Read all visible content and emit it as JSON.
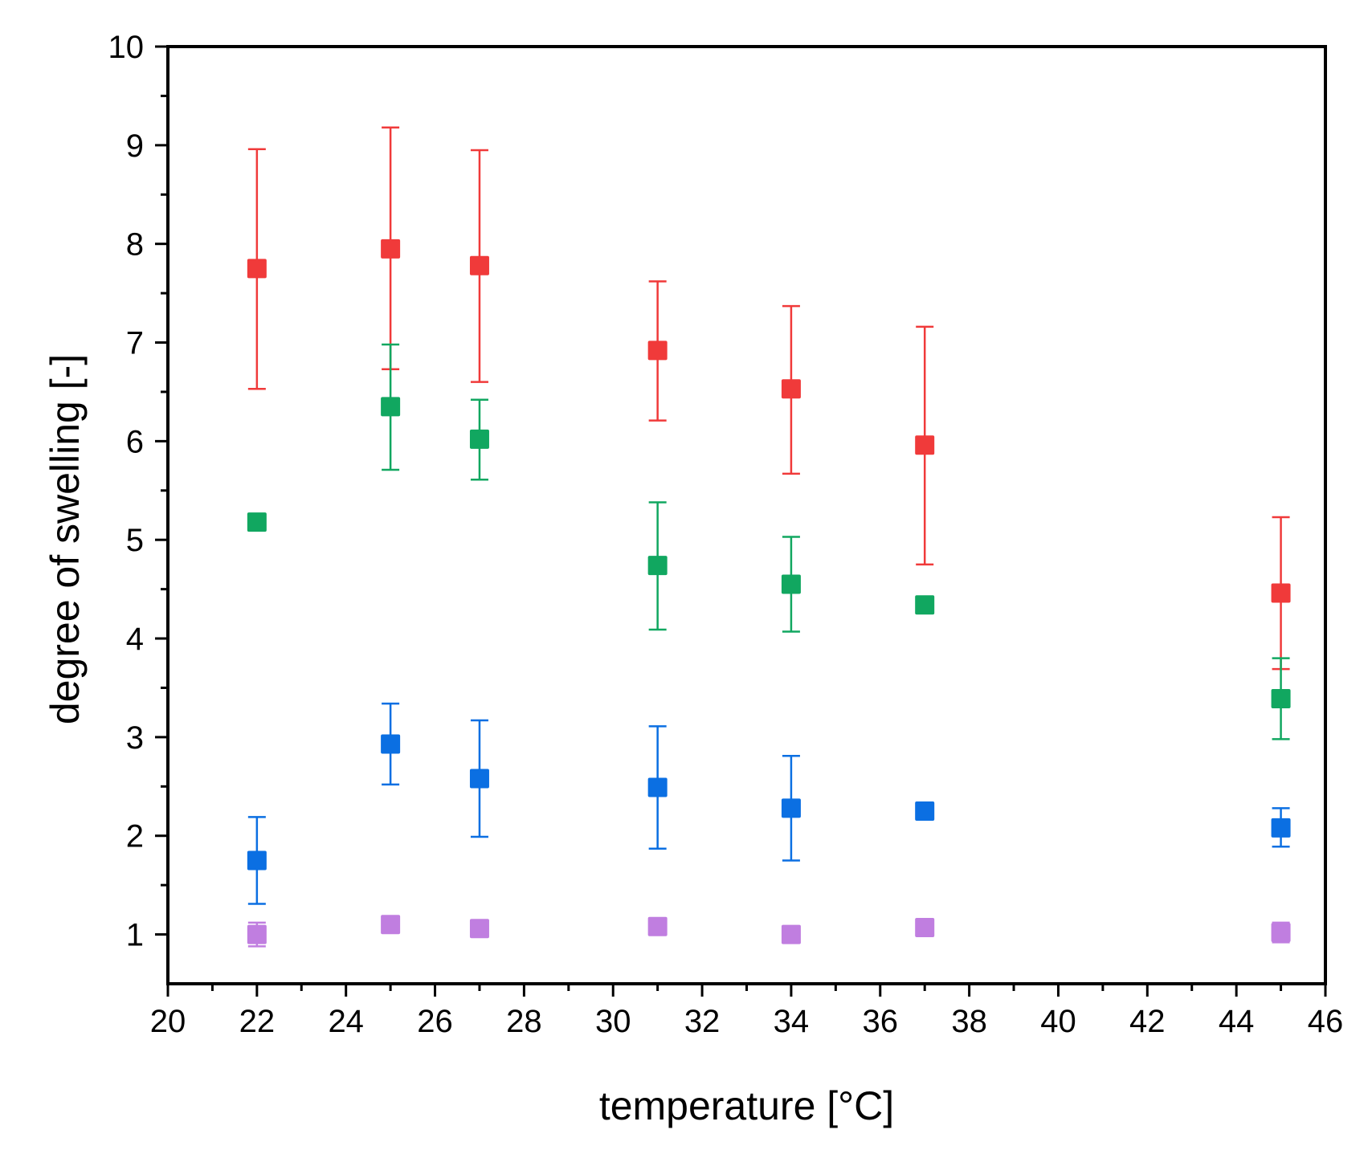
{
  "chart_data": {
    "type": "scatter",
    "title": "",
    "xlabel": "temperature [°C]",
    "ylabel": "degree of swelling [-]",
    "xlim": [
      20,
      46
    ],
    "ylim": [
      0.5,
      10
    ],
    "xticks": [
      20,
      22,
      24,
      26,
      28,
      30,
      32,
      34,
      36,
      38,
      40,
      42,
      44,
      46
    ],
    "yticks": [
      1,
      2,
      3,
      4,
      5,
      6,
      7,
      8,
      9,
      10
    ],
    "grid": false,
    "legend": "none",
    "marker": "square",
    "series": [
      {
        "name": "red",
        "color": "#f03a3a",
        "points": [
          {
            "x": 22,
            "y": 7.75,
            "lo": 6.53,
            "hi": 8.96
          },
          {
            "x": 25,
            "y": 7.95,
            "lo": 6.73,
            "hi": 9.18
          },
          {
            "x": 27,
            "y": 7.78,
            "lo": 6.6,
            "hi": 8.95
          },
          {
            "x": 31,
            "y": 6.92,
            "lo": 6.21,
            "hi": 7.62
          },
          {
            "x": 34,
            "y": 6.53,
            "lo": 5.67,
            "hi": 7.37
          },
          {
            "x": 37,
            "y": 5.96,
            "lo": 4.75,
            "hi": 7.16
          },
          {
            "x": 45,
            "y": 4.46,
            "lo": 3.69,
            "hi": 5.23
          }
        ]
      },
      {
        "name": "green",
        "color": "#11a760",
        "points": [
          {
            "x": 22,
            "y": 5.18,
            "lo": null,
            "hi": null
          },
          {
            "x": 25,
            "y": 6.35,
            "lo": 5.71,
            "hi": 6.98
          },
          {
            "x": 27,
            "y": 6.02,
            "lo": 5.61,
            "hi": 6.42
          },
          {
            "x": 31,
            "y": 4.74,
            "lo": 4.09,
            "hi": 5.38
          },
          {
            "x": 34,
            "y": 4.55,
            "lo": 4.07,
            "hi": 5.03
          },
          {
            "x": 37,
            "y": 4.34,
            "lo": null,
            "hi": null
          },
          {
            "x": 45,
            "y": 3.39,
            "lo": 2.98,
            "hi": 3.8
          }
        ]
      },
      {
        "name": "blue",
        "color": "#0b6fe2",
        "points": [
          {
            "x": 22,
            "y": 1.75,
            "lo": 1.31,
            "hi": 2.19
          },
          {
            "x": 25,
            "y": 2.93,
            "lo": 2.52,
            "hi": 3.34
          },
          {
            "x": 27,
            "y": 2.58,
            "lo": 1.99,
            "hi": 3.17
          },
          {
            "x": 31,
            "y": 2.49,
            "lo": 1.87,
            "hi": 3.11
          },
          {
            "x": 34,
            "y": 2.28,
            "lo": 1.75,
            "hi": 2.81
          },
          {
            "x": 37,
            "y": 2.25,
            "lo": null,
            "hi": null
          },
          {
            "x": 45,
            "y": 2.08,
            "lo": 1.89,
            "hi": 2.28
          }
        ]
      },
      {
        "name": "purple",
        "color": "#c07ee0",
        "points": [
          {
            "x": 22,
            "y": 1.0,
            "lo": 0.88,
            "hi": 1.12
          },
          {
            "x": 25,
            "y": 1.1,
            "lo": null,
            "hi": null
          },
          {
            "x": 27,
            "y": 1.06,
            "lo": null,
            "hi": null
          },
          {
            "x": 31,
            "y": 1.08,
            "lo": null,
            "hi": null
          },
          {
            "x": 34,
            "y": 1.0,
            "lo": null,
            "hi": null
          },
          {
            "x": 37,
            "y": 1.07,
            "lo": null,
            "hi": null
          },
          {
            "x": 45,
            "y": 1.02,
            "lo": 0.92,
            "hi": 1.12
          }
        ]
      }
    ]
  }
}
